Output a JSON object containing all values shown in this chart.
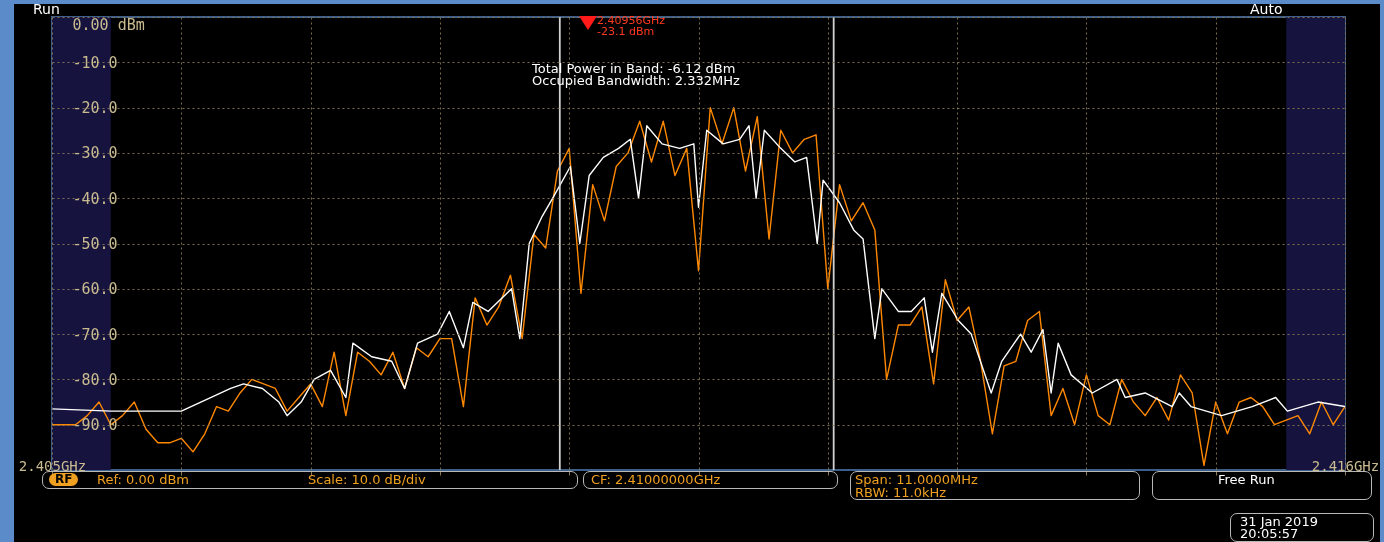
{
  "chart_data": {
    "type": "line",
    "xlim": [
      2.405,
      2.416
    ],
    "ylim": [
      -100,
      0
    ],
    "xticks": [
      {
        "value": 2.405,
        "label": "2.405GHz"
      },
      {
        "value": 2.4061,
        "label": null
      },
      {
        "value": 2.4072,
        "label": null
      },
      {
        "value": 2.4083,
        "label": null
      },
      {
        "value": 2.4094,
        "label": null
      },
      {
        "value": 2.4105,
        "label": null
      },
      {
        "value": 2.4116,
        "label": null
      },
      {
        "value": 2.4127,
        "label": null
      },
      {
        "value": 2.4138,
        "label": null
      },
      {
        "value": 2.4149,
        "label": null
      },
      {
        "value": 2.416,
        "label": "2.416GHz"
      }
    ],
    "yticks": [
      {
        "value": 0,
        "label": "0.00 dBm"
      },
      {
        "value": -10,
        "label": "-10.0"
      },
      {
        "value": -20,
        "label": "-20.0"
      },
      {
        "value": -30,
        "label": "-30.0"
      },
      {
        "value": -40,
        "label": "-40.0"
      },
      {
        "value": -50,
        "label": "-50.0"
      },
      {
        "value": -60,
        "label": "-60.0"
      },
      {
        "value": -70,
        "label": "-70.0"
      },
      {
        "value": -80,
        "label": "-80.0"
      },
      {
        "value": -90,
        "label": "-90.0"
      }
    ],
    "grid": true,
    "series": [
      {
        "color": "#ff8800",
        "x": [
          2.405,
          2.4051,
          2.4052,
          2.4053,
          2.4054,
          2.4055,
          2.4056,
          2.4057,
          2.4058,
          2.4059,
          2.406,
          2.4061,
          2.4062,
          2.4063,
          2.4064,
          2.4065,
          2.4066,
          2.4067,
          2.4068,
          2.4069,
          2.407,
          2.4071,
          2.4072,
          2.4073,
          2.4074,
          2.4075,
          2.4076,
          2.4077,
          2.4078,
          2.4079,
          2.408,
          2.4081,
          2.4082,
          2.4083,
          2.4084,
          2.4085,
          2.4086,
          2.4087,
          2.4088,
          2.4089,
          2.409,
          2.4091,
          2.4092,
          2.4093,
          2.4094,
          2.4095,
          2.4096,
          2.4097,
          2.4098,
          2.4099,
          2.41,
          2.4101,
          2.4102,
          2.4103,
          2.4104,
          2.4105,
          2.4106,
          2.4107,
          2.4108,
          2.4109,
          2.411,
          2.4111,
          2.4112,
          2.4113,
          2.4114,
          2.4115,
          2.4116,
          2.4117,
          2.4118,
          2.4119,
          2.412,
          2.4121,
          2.4122,
          2.4123,
          2.4124,
          2.4125,
          2.4126,
          2.4127,
          2.4128,
          2.4129,
          2.413,
          2.4131,
          2.4132,
          2.4133,
          2.4134,
          2.4135,
          2.4136,
          2.4137,
          2.4138,
          2.4139,
          2.414,
          2.4141,
          2.4142,
          2.4143,
          2.4144,
          2.4145,
          2.4146,
          2.4147,
          2.4148,
          2.4149,
          2.415,
          2.4151,
          2.4152,
          2.4153,
          2.4154,
          2.4155,
          2.4156,
          2.4157,
          2.4158,
          2.4159,
          2.416
        ],
        "values": [
          -90,
          -90,
          -90,
          -88,
          -85,
          -90,
          -88,
          -85,
          -91,
          -94,
          -94,
          -93,
          -96,
          -92,
          -86,
          -87,
          -83,
          -80,
          -81,
          -82,
          -87,
          -84,
          -81,
          -86,
          -74,
          -88,
          -74,
          -76,
          -79,
          -74,
          -82,
          -73,
          -75,
          -71,
          -71,
          -86,
          -62,
          -68,
          -64,
          -57,
          -71,
          -48,
          -51,
          -34,
          -29,
          -61,
          -37,
          -45,
          -33,
          -30,
          -23,
          -32,
          -23,
          -35,
          -29,
          -56,
          -20,
          -28,
          -20,
          -34,
          -22,
          -49,
          -25,
          -30,
          -27,
          -26,
          -60,
          -37,
          -45,
          -41,
          -47,
          -80,
          -68,
          -68,
          -64,
          -81,
          -58,
          -67,
          -64,
          -76,
          -92,
          -77,
          -76,
          -67,
          -65,
          -88,
          -82,
          -90,
          -79,
          -88,
          -90,
          -80,
          -85,
          -88,
          -84,
          -89,
          -79,
          -83,
          -99,
          -85,
          -92,
          -85,
          -84,
          -86,
          -90,
          -89,
          -88,
          -92,
          -85,
          -90,
          -86
        ]
      },
      {
        "color": "#ffffff",
        "x": [
          2.405,
          2.4055,
          2.4061,
          2.40652,
          2.40663,
          2.40679,
          2.40693,
          2.407,
          2.40712,
          2.40723,
          2.40737,
          2.4075,
          2.40756,
          2.40772,
          2.40789,
          2.408,
          2.40811,
          2.40828,
          2.40838,
          2.4085,
          2.40858,
          2.40871,
          2.40891,
          2.40898,
          2.40906,
          2.40917,
          2.40926,
          2.40941,
          2.40949,
          2.40957,
          2.40969,
          2.40982,
          2.40992,
          2.40999,
          2.41006,
          2.41019,
          2.41034,
          2.41046,
          2.4105,
          2.41057,
          2.41071,
          2.41085,
          2.41093,
          2.41099,
          2.41106,
          2.4112,
          2.41132,
          2.41142,
          2.41151,
          2.41156,
          2.4117,
          2.41182,
          2.4119,
          2.412,
          2.41206,
          2.4122,
          2.41231,
          2.41242,
          2.41249,
          2.41257,
          2.41271,
          2.41282,
          2.41299,
          2.41308,
          2.41324,
          2.41333,
          2.41343,
          2.4135,
          2.41356,
          2.41367,
          2.41385,
          2.41406,
          2.41413,
          2.4143,
          2.41453,
          2.41459,
          2.41469,
          2.41495,
          2.41521,
          2.41541,
          2.41551,
          2.41577,
          2.416
        ],
        "values": [
          -86.5,
          -87,
          -87,
          -82,
          -81,
          -82,
          -85,
          -88,
          -85,
          -80,
          -78,
          -84,
          -72,
          -75,
          -76,
          -82,
          -72,
          -70,
          -65,
          -73,
          -63,
          -65,
          -60,
          -71,
          -50,
          -44,
          -40,
          -33,
          -50,
          -35,
          -31,
          -29,
          -27,
          -40,
          -24,
          -28,
          -29,
          -28,
          -42,
          -25,
          -28,
          -27,
          -24,
          -40,
          -25,
          -29,
          -32,
          -31,
          -50,
          -36,
          -41,
          -47,
          -49,
          -71,
          -60,
          -65,
          -65,
          -62,
          -74,
          -61,
          -67,
          -70,
          -83,
          -76,
          -70,
          -74,
          -69,
          -83,
          -72,
          -79,
          -83,
          -80,
          -84,
          -83,
          -86,
          -83,
          -86,
          -88,
          -86,
          -84,
          -87,
          -85,
          -86
        ]
      }
    ],
    "ref_lines": [
      {
        "axis": "x",
        "value": 2.40932,
        "color": "#d0d0d0"
      },
      {
        "axis": "x",
        "value": 2.41165,
        "color": "#d0d0d0"
      }
    ],
    "bands": [
      {
        "axis": "x",
        "from": 2.405,
        "to": 2.4055,
        "color": "#16133f"
      },
      {
        "axis": "x",
        "from": 2.4155,
        "to": 2.416,
        "color": "#16133f"
      }
    ],
    "annotations": [
      "Run",
      "Auto",
      "Total Power in Band: -6.12 dBm",
      "Occupied Bandwidth: 2.332MHz",
      "RF",
      "Ref: 0.00 dBm",
      "Scale: 10.0 dB/div",
      "CF: 2.41000000GHz",
      "Span: 11.0000MHz",
      "RBW: 11.0kHz",
      "Free Run",
      "31 Jan 2019",
      "20:05:57",
      "2.40956GHz",
      "-23.1 dBm"
    ]
  }
}
